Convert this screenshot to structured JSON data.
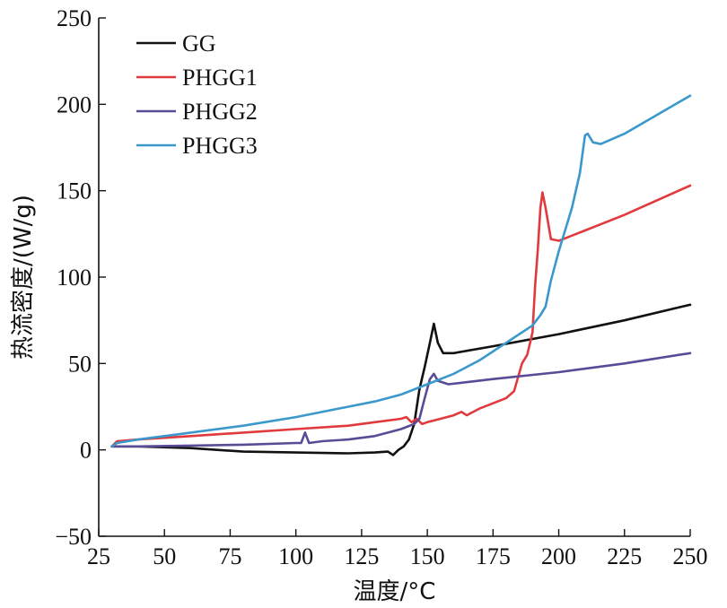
{
  "chart_data": {
    "type": "line",
    "xlabel": "温度/°C",
    "ylabel": "热流密度/(W/g)",
    "xlim": [
      25,
      250
    ],
    "ylim": [
      -50,
      250
    ],
    "x_ticks": [
      "25",
      "50",
      "75",
      "100",
      "125",
      "150",
      "175",
      "200",
      "225",
      "250"
    ],
    "y_ticks": [
      "−50",
      "0",
      "50",
      "100",
      "150",
      "200",
      "250"
    ],
    "grid": false,
    "legend_position": "top-left",
    "series": [
      {
        "name": "GG",
        "color": "#111111",
        "points": [
          [
            30,
            2
          ],
          [
            40,
            2
          ],
          [
            60,
            1
          ],
          [
            80,
            -1
          ],
          [
            100,
            -1.5
          ],
          [
            120,
            -2
          ],
          [
            130,
            -1.5
          ],
          [
            135,
            -1
          ],
          [
            137,
            -3
          ],
          [
            139,
            0
          ],
          [
            141,
            2
          ],
          [
            143,
            6
          ],
          [
            145,
            15
          ],
          [
            147,
            35
          ],
          [
            149,
            48
          ],
          [
            151,
            62
          ],
          [
            152.5,
            73
          ],
          [
            154,
            62
          ],
          [
            156,
            56
          ],
          [
            160,
            56
          ],
          [
            175,
            60
          ],
          [
            200,
            67
          ],
          [
            225,
            75
          ],
          [
            250,
            84
          ]
        ]
      },
      {
        "name": "PHGG1",
        "color": "#e03a3e",
        "points": [
          [
            30,
            2
          ],
          [
            32,
            5
          ],
          [
            40,
            6
          ],
          [
            60,
            8
          ],
          [
            80,
            10
          ],
          [
            100,
            12
          ],
          [
            120,
            14
          ],
          [
            130,
            16
          ],
          [
            140,
            18
          ],
          [
            142,
            19
          ],
          [
            144,
            16
          ],
          [
            146,
            18
          ],
          [
            148,
            15
          ],
          [
            150,
            16
          ],
          [
            155,
            18
          ],
          [
            160,
            20
          ],
          [
            163,
            22
          ],
          [
            165,
            20
          ],
          [
            170,
            24
          ],
          [
            180,
            30
          ],
          [
            183,
            34
          ],
          [
            186,
            50
          ],
          [
            188,
            55
          ],
          [
            190,
            68
          ],
          [
            191,
            95
          ],
          [
            192,
            115
          ],
          [
            193,
            140
          ],
          [
            193.8,
            149
          ],
          [
            195,
            140
          ],
          [
            197,
            122
          ],
          [
            200,
            121
          ],
          [
            210,
            127
          ],
          [
            225,
            136
          ],
          [
            250,
            153
          ]
        ]
      },
      {
        "name": "PHGG2",
        "color": "#5a4b97",
        "points": [
          [
            30,
            2
          ],
          [
            40,
            2
          ],
          [
            60,
            2.5
          ],
          [
            80,
            3
          ],
          [
            100,
            4
          ],
          [
            102,
            4
          ],
          [
            103.5,
            10
          ],
          [
            105,
            4
          ],
          [
            110,
            5
          ],
          [
            120,
            6
          ],
          [
            130,
            8
          ],
          [
            140,
            12
          ],
          [
            145,
            15
          ],
          [
            147,
            18
          ],
          [
            149,
            30
          ],
          [
            151,
            41
          ],
          [
            152.5,
            44
          ],
          [
            154,
            40
          ],
          [
            158,
            38
          ],
          [
            175,
            41
          ],
          [
            200,
            45
          ],
          [
            225,
            50
          ],
          [
            250,
            56
          ]
        ]
      },
      {
        "name": "PHGG3",
        "color": "#3a98cc",
        "points": [
          [
            30,
            2
          ],
          [
            32,
            4
          ],
          [
            40,
            6
          ],
          [
            50,
            8
          ],
          [
            60,
            10
          ],
          [
            80,
            14
          ],
          [
            100,
            19
          ],
          [
            120,
            25
          ],
          [
            130,
            28
          ],
          [
            140,
            32
          ],
          [
            150,
            38
          ],
          [
            160,
            44
          ],
          [
            170,
            52
          ],
          [
            180,
            62
          ],
          [
            190,
            72
          ],
          [
            193,
            78
          ],
          [
            195,
            83
          ],
          [
            197,
            98
          ],
          [
            200,
            115
          ],
          [
            205,
            140
          ],
          [
            208,
            160
          ],
          [
            210,
            182
          ],
          [
            211,
            183
          ],
          [
            213,
            178
          ],
          [
            216,
            177
          ],
          [
            225,
            183
          ],
          [
            250,
            205
          ]
        ]
      }
    ]
  }
}
